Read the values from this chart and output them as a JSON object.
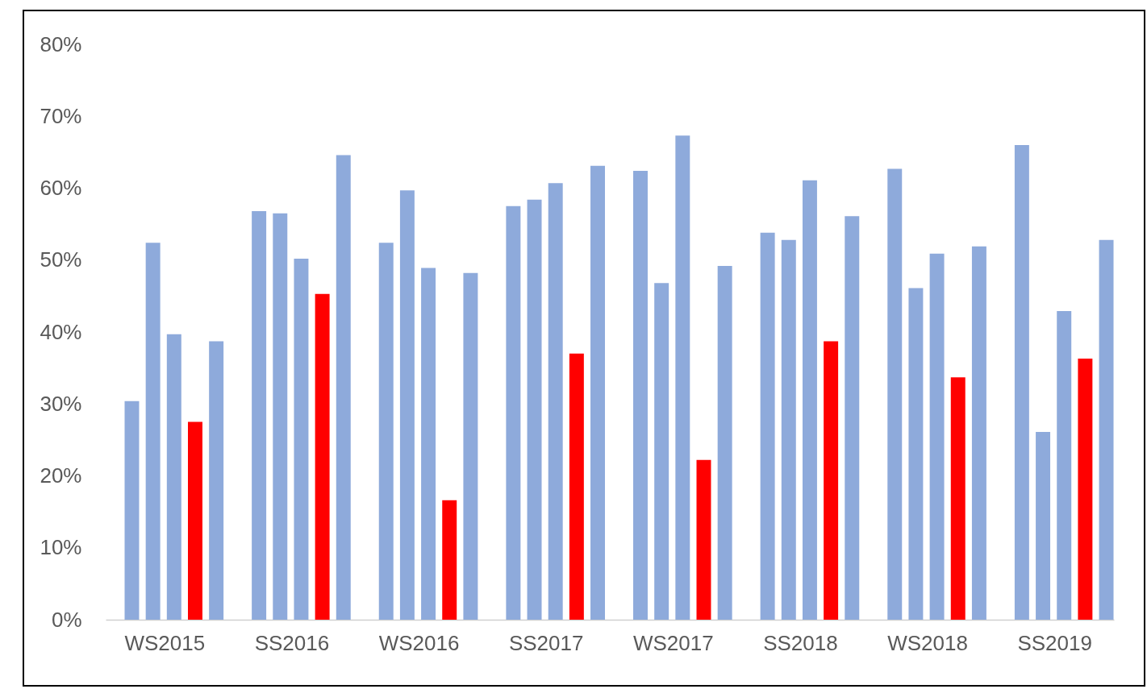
{
  "chart_data": {
    "type": "bar",
    "categories": [
      "WS2015",
      "SS2016",
      "WS2016",
      "SS2017",
      "WS2017",
      "SS2018",
      "WS2018",
      "SS2019"
    ],
    "series": [
      {
        "color": "#8eaadb",
        "values": [
          30.4,
          56.8,
          52.4,
          57.5,
          62.4,
          53.8,
          62.7,
          66.0
        ]
      },
      {
        "color": "#8eaadb",
        "values": [
          52.4,
          56.5,
          59.7,
          58.4,
          46.8,
          52.8,
          46.1,
          26.1
        ]
      },
      {
        "color": "#8eaadb",
        "values": [
          39.7,
          50.2,
          48.9,
          60.7,
          67.3,
          61.1,
          50.9,
          42.9
        ]
      },
      {
        "color": "#ff0000",
        "values": [
          27.5,
          45.3,
          16.6,
          37.0,
          22.2,
          38.7,
          33.7,
          36.3
        ]
      },
      {
        "color": "#8eaadb",
        "values": [
          38.7,
          64.6,
          48.2,
          63.1,
          49.2,
          56.1,
          51.9,
          52.8
        ]
      }
    ],
    "ylim": [
      0,
      80
    ],
    "yticks": [
      {
        "value": 0,
        "label": "0%"
      },
      {
        "value": 10,
        "label": "10%"
      },
      {
        "value": 20,
        "label": "20%"
      },
      {
        "value": 30,
        "label": "30%"
      },
      {
        "value": 40,
        "label": "40%"
      },
      {
        "value": 50,
        "label": "50%"
      },
      {
        "value": 60,
        "label": "60%"
      },
      {
        "value": 70,
        "label": "70%"
      },
      {
        "value": 80,
        "label": "80%"
      }
    ],
    "grid": false
  }
}
